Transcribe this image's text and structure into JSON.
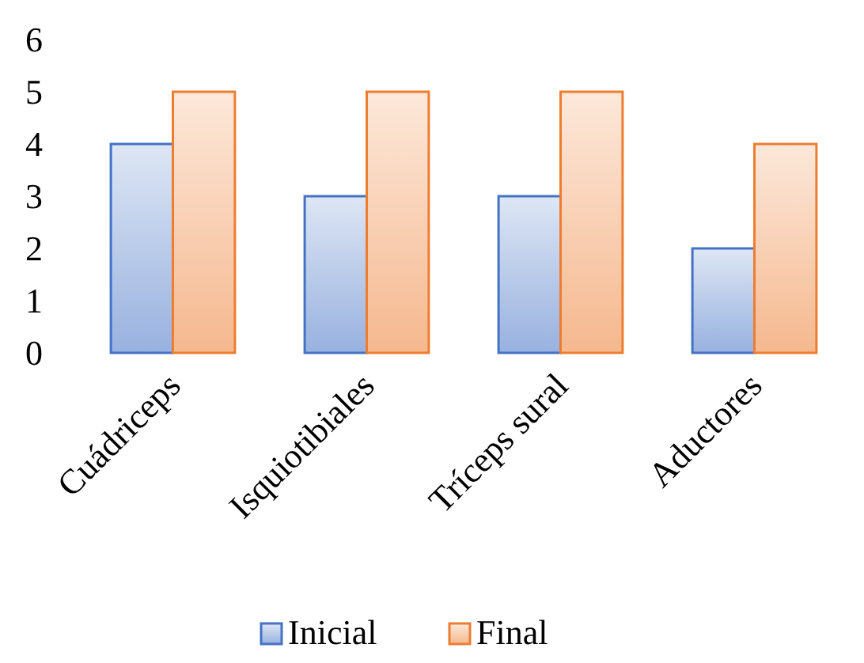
{
  "chart_data": {
    "type": "bar",
    "categories": [
      "Cuádriceps",
      "Isquiotibiales",
      "Tríceps sural",
      "Aductores"
    ],
    "series": [
      {
        "name": "Inicial",
        "color": "#4472c4",
        "values": [
          4,
          3,
          3,
          2
        ]
      },
      {
        "name": "Final",
        "color": "#ed7d31",
        "values": [
          5,
          5,
          5,
          4
        ]
      }
    ],
    "ylim": [
      0,
      6
    ],
    "yticks": [
      0,
      1,
      2,
      3,
      4,
      5,
      6
    ],
    "grid": false,
    "legend": "bottom"
  }
}
